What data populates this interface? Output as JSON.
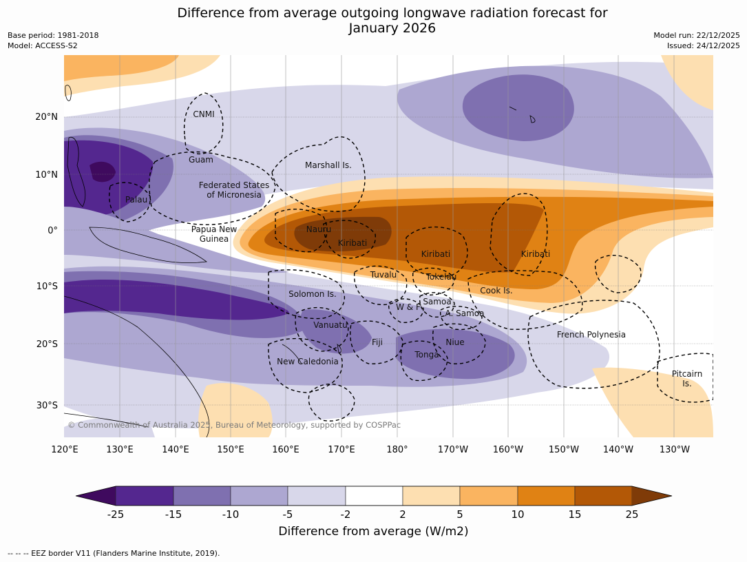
{
  "title_line1": "Difference from average outgoing longwave radiation forecast for",
  "title_line2": "January 2026",
  "meta_left": {
    "base_period": "Base period: 1981-2018",
    "model": "Model: ACCESS-S2"
  },
  "meta_right": {
    "model_run": "Model run: 22/12/2025",
    "issued": "Issued: 24/12/2025"
  },
  "lat_labels": [
    "20°N",
    "10°N",
    "0°",
    "10°S",
    "20°S",
    "30°S"
  ],
  "lon_labels": [
    "120°E",
    "130°E",
    "140°E",
    "150°E",
    "160°E",
    "170°E",
    "180°",
    "170°W",
    "160°W",
    "150°W",
    "140°W",
    "130°W"
  ],
  "places": {
    "cnmi": "CNMI",
    "guam": "Guam",
    "marshall": "Marshall Is.",
    "fsm_1": "Federated States",
    "fsm_2": "of Micronesia",
    "palau": "Palau",
    "png_1": "Papua New",
    "png_2": "Guinea",
    "nauru": "Nauru",
    "kiribati_w": "Kiribati",
    "kiribati_c": "Kiribati",
    "kiribati_e": "Kiribati",
    "tuvalu": "Tuvalu",
    "tokelau": "Tokelau",
    "cook": "Cook Is.",
    "solomon": "Solomon Is.",
    "wf": "W & F",
    "samoa": "Samoa",
    "asamoa": "A. Samoa",
    "vanuatu": "Vanuatu",
    "fiji": "Fiji",
    "niue": "Niue",
    "tonga": "Tonga",
    "newcal": "New Caledonia",
    "frpoly": "French Polynesia",
    "pitcairn_1": "Pitcairn",
    "pitcairn_2": "Is."
  },
  "copyright": "© Commonwealth of Australia 2025, Bureau of Meteorology, supported by COSPPac",
  "colorbar": {
    "ticks": [
      "-25",
      "-15",
      "-10",
      "-5",
      "-2",
      "2",
      "5",
      "10",
      "15",
      "25"
    ],
    "colors": [
      "#3f0a5e",
      "#54278f",
      "#7f70b0",
      "#ada7d1",
      "#d8d7ea",
      "#ffffff",
      "#fddfb1",
      "#fab460",
      "#e08214",
      "#b35806",
      "#7f3b08"
    ],
    "title": "Difference from average (W/m2)"
  },
  "footnote": "-- -- -- EEZ border V11 (Flanders Marine Institute, 2019)."
}
